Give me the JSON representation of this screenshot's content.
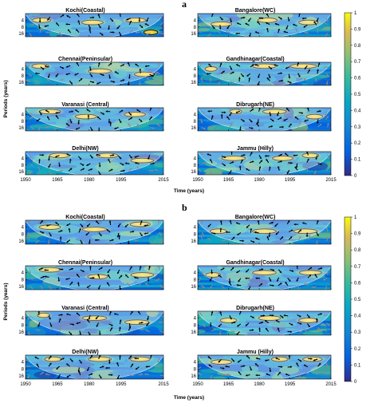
{
  "figure": {
    "ylabel": "Periods (years)",
    "xlabel": "Time (years)",
    "x_ticks": [
      1950,
      1965,
      1980,
      1995,
      2015
    ],
    "y_ticks": [
      4,
      8,
      16
    ],
    "colorbar_ticks": [
      0,
      0.1,
      0.2,
      0.3,
      0.4,
      0.5,
      0.6,
      0.7,
      0.8,
      0.9,
      1
    ]
  },
  "chart_data": [
    {
      "type": "heatmap",
      "panel_label": "a",
      "xlim": [
        1950,
        2015
      ],
      "y_scale": "log2",
      "y_ticks": [
        4,
        8,
        16
      ],
      "colorbar": {
        "range": [
          0,
          1
        ],
        "colormap": "parula",
        "ticks": [
          0,
          0.1,
          0.2,
          0.3,
          0.4,
          0.5,
          0.6,
          0.7,
          0.8,
          0.9,
          1
        ]
      },
      "xlabel": "Time (years)",
      "ylabel": "Periods (years)",
      "subplots": [
        {
          "title": "Kochi(Coastal)",
          "high_coherence": [
            [
              1952,
              1963,
              4
            ],
            [
              1975,
              1988,
              5
            ],
            [
              1996,
              2008,
              4
            ],
            [
              2005,
              2013,
              14
            ]
          ]
        },
        {
          "title": "Bangalore(WC)",
          "high_coherence": [
            [
              1955,
              1968,
              6
            ],
            [
              1978,
              1990,
              4
            ],
            [
              1998,
              2010,
              5
            ]
          ]
        },
        {
          "title": "Chennai(Peninsular)",
          "high_coherence": [
            [
              1952,
              1962,
              3
            ],
            [
              1978,
              1992,
              5
            ],
            [
              2000,
              2012,
              7
            ]
          ]
        },
        {
          "title": "Gandhinagar(Coastal)",
          "high_coherence": [
            [
              1953,
              1960,
              4
            ],
            [
              1975,
              1990,
              3
            ],
            [
              1993,
              2010,
              3
            ]
          ]
        },
        {
          "title": "Varanasi (Central)",
          "high_coherence": [
            [
              1955,
              1968,
              3
            ],
            [
              1972,
              1985,
              5
            ],
            [
              1995,
              2008,
              4
            ]
          ]
        },
        {
          "title": "Dibrugarh(NE)",
          "high_coherence": [
            [
              1965,
              1972,
              3
            ],
            [
              1980,
              1995,
              3
            ],
            [
              2002,
              2012,
              5
            ]
          ]
        },
        {
          "title": "Delhi(NW)",
          "high_coherence": [
            [
              1960,
              1972,
              3
            ],
            [
              1982,
              1995,
              3
            ],
            [
              1998,
              2012,
              5
            ]
          ]
        },
        {
          "title": "Jammu (Hilly)",
          "high_coherence": [
            [
              1960,
              1975,
              4
            ],
            [
              1985,
              1998,
              4
            ],
            [
              2000,
              2010,
              3
            ]
          ]
        }
      ]
    },
    {
      "type": "heatmap",
      "panel_label": "b",
      "xlim": [
        1950,
        2015
      ],
      "y_scale": "log2",
      "y_ticks": [
        4,
        8,
        16
      ],
      "colorbar": {
        "range": [
          0,
          1
        ],
        "colormap": "parula",
        "ticks": [
          0,
          0.1,
          0.2,
          0.3,
          0.4,
          0.5,
          0.6,
          0.7,
          0.8,
          0.9,
          1
        ]
      },
      "xlabel": "Time (years)",
      "ylabel": "Periods (years)",
      "subplots": [
        {
          "title": "Kochi(Coastal)",
          "high_coherence": [
            [
              1955,
              1968,
              4
            ],
            [
              1975,
              1990,
              5
            ],
            [
              1998,
              2010,
              3
            ]
          ]
        },
        {
          "title": "Bangalore(WC)",
          "high_coherence": [
            [
              1955,
              1965,
              6
            ],
            [
              1975,
              1990,
              6
            ],
            [
              1995,
              2010,
              6
            ]
          ]
        },
        {
          "title": "Chennai(Peninsular)",
          "high_coherence": [
            [
              1955,
              1968,
              3
            ],
            [
              1978,
              1990,
              6
            ],
            [
              1998,
              2012,
              5
            ]
          ]
        },
        {
          "title": "Gandhinagar(Coastal)",
          "high_coherence": [
            [
              1953,
              1962,
              5
            ],
            [
              1975,
              1990,
              4
            ],
            [
              1998,
              2012,
              4
            ]
          ]
        },
        {
          "title": "Varanasi (Central)",
          "high_coherence": [
            [
              1955,
              1962,
              3
            ],
            [
              1975,
              1990,
              4
            ],
            [
              1995,
              2010,
              6
            ]
          ]
        },
        {
          "title": "Dibrugarh(NE)",
          "high_coherence": [
            [
              1960,
              1970,
              5
            ],
            [
              1978,
              1992,
              4
            ],
            [
              1998,
              2010,
              5
            ]
          ]
        },
        {
          "title": "Delhi(NW)",
          "high_coherence": [
            [
              1958,
              1968,
              3
            ],
            [
              1978,
              1992,
              3
            ],
            [
              1998,
              2010,
              3
            ]
          ]
        },
        {
          "title": "Jammu (Hilly)",
          "high_coherence": [
            [
              1955,
              1968,
              4
            ],
            [
              1985,
              1995,
              3
            ],
            [
              2000,
              2012,
              3
            ]
          ]
        }
      ]
    }
  ]
}
